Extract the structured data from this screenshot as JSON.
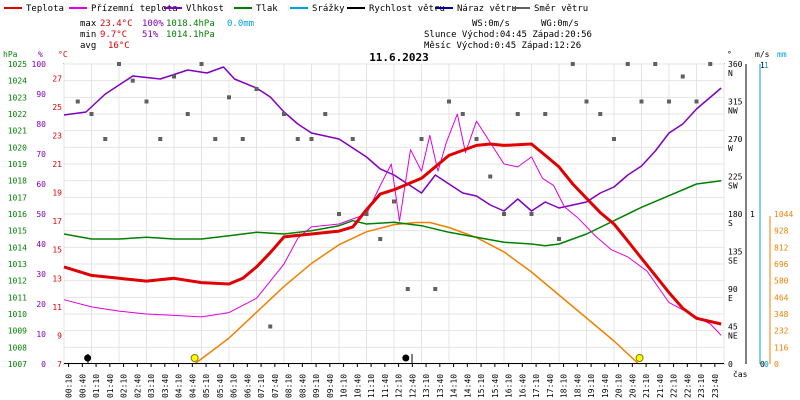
{
  "title": "11.6.2023",
  "legend": [
    {
      "label": "Teplota",
      "color": "#e00000"
    },
    {
      "label": "Přízemní teplota",
      "color": "#e000e0"
    },
    {
      "label": "Vlhkost",
      "color": "#8000c0"
    },
    {
      "label": "Tlak",
      "color": "#008000"
    },
    {
      "label": "Srážky",
      "color": "#00a0e0"
    },
    {
      "label": "Rychlost větru",
      "color": "#000000"
    },
    {
      "label": "Náraz větru",
      "color": "#0000a0"
    },
    {
      "label": "Směr větru",
      "color": "#606060"
    }
  ],
  "stats": {
    "max_label": "max",
    "max_temp": "23.4°C",
    "max_hum": "100%",
    "max_press": "1018.4hPa",
    "max_rain": "0.0mm",
    "min_label": "min",
    "min_temp": "9.7°C",
    "min_hum": "51%",
    "min_press": "1014.1hPa",
    "avg_label": "avg",
    "avg_temp": "16°C",
    "ws": "WS:0m/s",
    "wg": "WG:0m/s",
    "sun": "Slunce Východ:04:45  Západ:20:56",
    "moon": "Měsíc  Východ:0:45  Západ:12:26"
  },
  "axis_titles": {
    "hpa": "hPa",
    "pct": "%",
    "degc": "°C",
    "deg": "°",
    "ms": "m/s",
    "mm": "mm",
    "time": "čas"
  },
  "axes": {
    "pressure_ticks": [
      "1025",
      "1024",
      "1023",
      "1022",
      "1021",
      "1020",
      "1019",
      "1018",
      "1017",
      "1016",
      "1015",
      "1014",
      "1013",
      "1012",
      "1011",
      "1010",
      "1009",
      "1008",
      "1007"
    ],
    "humidity_ticks": [
      "100",
      "90",
      "80",
      "70",
      "60",
      "50",
      "40",
      "30",
      "20",
      "10",
      "0"
    ],
    "temp_ticks": [
      "27",
      "25",
      "23",
      "21",
      "19",
      "17",
      "15",
      "13",
      "11",
      "9",
      "7"
    ],
    "dir_ticks": [
      {
        "deg": "360",
        "dir": "N"
      },
      {
        "deg": "315",
        "dir": "NW"
      },
      {
        "deg": "270",
        "dir": "W"
      },
      {
        "deg": "225",
        "dir": "SW"
      },
      {
        "deg": "180",
        "dir": "S"
      },
      {
        "deg": "135",
        "dir": "SE"
      },
      {
        "deg": "90",
        "dir": "E"
      },
      {
        "deg": "45",
        "dir": "NE"
      },
      {
        "deg": "0",
        "dir": ""
      }
    ],
    "wind_ticks": {
      "top": "1",
      "mid": "1",
      "bottom": "0"
    },
    "rain_ticks": {
      "top": "1",
      "bottom": "0"
    },
    "solar_ticks": [
      "1044",
      "928",
      "812",
      "696",
      "580",
      "464",
      "348",
      "232",
      "116",
      "0"
    ],
    "time_labels": [
      "00:10",
      "00:40",
      "01:10",
      "01:40",
      "02:10",
      "02:40",
      "03:10",
      "03:40",
      "04:10",
      "04:40",
      "05:10",
      "05:40",
      "06:10",
      "06:40",
      "07:10",
      "07:40",
      "08:10",
      "08:40",
      "09:10",
      "09:40",
      "10:10",
      "10:40",
      "11:10",
      "11:40",
      "12:10",
      "12:40",
      "13:10",
      "13:40",
      "14:10",
      "14:40",
      "15:10",
      "15:40",
      "16:10",
      "16:40",
      "17:10",
      "17:40",
      "18:10",
      "18:40",
      "19:10",
      "19:40",
      "20:10",
      "20:40",
      "21:10",
      "21:40",
      "22:10",
      "22:40",
      "23:10",
      "23:40"
    ]
  },
  "chart_data": {
    "type": "line",
    "x_unit": "hour",
    "series": [
      {
        "name": "Teplota",
        "color": "#e00000",
        "values": [
          [
            0,
            13.8
          ],
          [
            1,
            13.2
          ],
          [
            2,
            13.0
          ],
          [
            3,
            12.8
          ],
          [
            4,
            13.0
          ],
          [
            5,
            12.7
          ],
          [
            6,
            12.6
          ],
          [
            6.5,
            13.0
          ],
          [
            7,
            13.8
          ],
          [
            7.5,
            14.8
          ],
          [
            8,
            15.9
          ],
          [
            8.5,
            16.0
          ],
          [
            9,
            16.1
          ],
          [
            10,
            16.3
          ],
          [
            10.5,
            16.6
          ],
          [
            11,
            17.8
          ],
          [
            11.5,
            18.9
          ],
          [
            12,
            19.2
          ],
          [
            12.5,
            19.6
          ],
          [
            13,
            20.0
          ],
          [
            14,
            21.6
          ],
          [
            15,
            22.3
          ],
          [
            15.5,
            22.4
          ],
          [
            16,
            22.3
          ],
          [
            17,
            22.4
          ],
          [
            17.5,
            21.6
          ],
          [
            18,
            20.8
          ],
          [
            18.5,
            19.6
          ],
          [
            19,
            18.6
          ],
          [
            19.5,
            17.6
          ],
          [
            20,
            16.8
          ],
          [
            20.5,
            15.6
          ],
          [
            21,
            14.4
          ],
          [
            21.5,
            13.2
          ],
          [
            22,
            12.0
          ],
          [
            22.5,
            10.9
          ],
          [
            23,
            10.2
          ],
          [
            23.9,
            9.8
          ]
        ]
      },
      {
        "name": "Přízemní teplota",
        "color": "#e000e0",
        "values": [
          [
            0,
            11.5
          ],
          [
            1,
            11.0
          ],
          [
            2,
            10.7
          ],
          [
            3,
            10.5
          ],
          [
            4,
            10.4
          ],
          [
            5,
            10.3
          ],
          [
            6,
            10.6
          ],
          [
            7,
            11.6
          ],
          [
            8,
            14.0
          ],
          [
            8.5,
            15.8
          ],
          [
            9,
            16.6
          ],
          [
            10,
            16.8
          ],
          [
            11,
            17.5
          ],
          [
            11.5,
            19.5
          ],
          [
            11.9,
            21.0
          ],
          [
            12.2,
            17.0
          ],
          [
            12.6,
            22.0
          ],
          [
            13,
            20.5
          ],
          [
            13.3,
            23.0
          ],
          [
            13.6,
            20.5
          ],
          [
            13.9,
            22.5
          ],
          [
            14.3,
            24.5
          ],
          [
            14.6,
            21.8
          ],
          [
            15,
            24.0
          ],
          [
            15.5,
            22.5
          ],
          [
            16,
            21.0
          ],
          [
            16.5,
            20.8
          ],
          [
            17,
            21.5
          ],
          [
            17.4,
            20.0
          ],
          [
            17.8,
            19.5
          ],
          [
            18.2,
            18.0
          ],
          [
            18.7,
            17.2
          ],
          [
            19.3,
            16.0
          ],
          [
            19.9,
            15.0
          ],
          [
            20.5,
            14.5
          ],
          [
            21.2,
            13.5
          ],
          [
            22,
            11.3
          ],
          [
            22.8,
            10.5
          ],
          [
            23.5,
            9.8
          ],
          [
            23.9,
            9.0
          ]
        ]
      },
      {
        "name": "Vlhkost",
        "color": "#8000c0",
        "values": [
          [
            0,
            83
          ],
          [
            0.8,
            84
          ],
          [
            1.5,
            90
          ],
          [
            2.5,
            96
          ],
          [
            3.5,
            95
          ],
          [
            4.5,
            98
          ],
          [
            5.2,
            97
          ],
          [
            5.8,
            99
          ],
          [
            6.2,
            95
          ],
          [
            7,
            92
          ],
          [
            7.5,
            89
          ],
          [
            8,
            84
          ],
          [
            8.5,
            80
          ],
          [
            9,
            77
          ],
          [
            10,
            75
          ],
          [
            10.5,
            72
          ],
          [
            11,
            69
          ],
          [
            11.5,
            65
          ],
          [
            12,
            63
          ],
          [
            12.5,
            60
          ],
          [
            13,
            57
          ],
          [
            13.5,
            63
          ],
          [
            14,
            60
          ],
          [
            14.5,
            57
          ],
          [
            15,
            56
          ],
          [
            15.5,
            53
          ],
          [
            16,
            51
          ],
          [
            16.5,
            55
          ],
          [
            17,
            51
          ],
          [
            17.5,
            54
          ],
          [
            18,
            52
          ],
          [
            18.5,
            53
          ],
          [
            19,
            54
          ],
          [
            19.5,
            57
          ],
          [
            20,
            59
          ],
          [
            20.5,
            63
          ],
          [
            21,
            66
          ],
          [
            21.5,
            71
          ],
          [
            22,
            77
          ],
          [
            22.5,
            80
          ],
          [
            23,
            85
          ],
          [
            23.9,
            92
          ]
        ]
      },
      {
        "name": "Tlak",
        "color": "#008000",
        "values": [
          [
            0,
            1014.8
          ],
          [
            1,
            1014.5
          ],
          [
            2,
            1014.5
          ],
          [
            3,
            1014.6
          ],
          [
            4,
            1014.5
          ],
          [
            5,
            1014.5
          ],
          [
            6,
            1014.7
          ],
          [
            7,
            1014.9
          ],
          [
            8,
            1014.8
          ],
          [
            9,
            1015.0
          ],
          [
            10,
            1015.3
          ],
          [
            10.5,
            1015.6
          ],
          [
            11,
            1015.4
          ],
          [
            12,
            1015.5
          ],
          [
            13,
            1015.3
          ],
          [
            14,
            1014.9
          ],
          [
            15,
            1014.6
          ],
          [
            16,
            1014.3
          ],
          [
            17,
            1014.2
          ],
          [
            17.5,
            1014.1
          ],
          [
            18,
            1014.2
          ],
          [
            19,
            1014.8
          ],
          [
            20,
            1015.6
          ],
          [
            21,
            1016.4
          ],
          [
            22,
            1017.1
          ],
          [
            23,
            1017.8
          ],
          [
            23.9,
            1018.0
          ]
        ]
      },
      {
        "name": "Srážky",
        "color": "#00a0e0",
        "values": [
          [
            0,
            0
          ],
          [
            23.9,
            0
          ]
        ]
      },
      {
        "name": "Rychlost větru",
        "color": "#000000",
        "values": [
          [
            0,
            0
          ],
          [
            23.9,
            0
          ]
        ]
      },
      {
        "name": "Sluneční záření",
        "color": "#f08000",
        "values": [
          [
            4.75,
            0
          ],
          [
            6,
            180
          ],
          [
            7,
            360
          ],
          [
            8,
            540
          ],
          [
            9,
            700
          ],
          [
            10,
            830
          ],
          [
            11,
            920
          ],
          [
            12,
            970
          ],
          [
            12.8,
            985
          ],
          [
            13.3,
            985
          ],
          [
            14,
            950
          ],
          [
            15,
            880
          ],
          [
            16,
            780
          ],
          [
            17,
            640
          ],
          [
            18,
            480
          ],
          [
            19,
            320
          ],
          [
            20,
            160
          ],
          [
            20.9,
            0
          ]
        ]
      },
      {
        "name": "Směr větru",
        "color": "#606060",
        "values": [
          [
            0.5,
            315
          ],
          [
            1,
            300
          ],
          [
            1.5,
            270
          ],
          [
            2,
            360
          ],
          [
            2.5,
            340
          ],
          [
            3,
            315
          ],
          [
            3.5,
            270
          ],
          [
            4,
            345
          ],
          [
            4.5,
            300
          ],
          [
            5,
            360
          ],
          [
            5.5,
            270
          ],
          [
            6,
            320
          ],
          [
            6.5,
            270
          ],
          [
            7,
            330
          ],
          [
            7.5,
            45
          ],
          [
            8,
            300
          ],
          [
            8.5,
            270
          ],
          [
            9,
            270
          ],
          [
            9.5,
            300
          ],
          [
            10,
            180
          ],
          [
            10.5,
            270
          ],
          [
            11,
            180
          ],
          [
            11.5,
            150
          ],
          [
            12,
            195
          ],
          [
            12.5,
            90
          ],
          [
            13,
            270
          ],
          [
            13.5,
            90
          ],
          [
            14,
            315
          ],
          [
            14.5,
            300
          ],
          [
            15,
            270
          ],
          [
            15.5,
            225
          ],
          [
            16,
            180
          ],
          [
            16.5,
            300
          ],
          [
            17,
            180
          ],
          [
            17.5,
            300
          ],
          [
            18,
            150
          ],
          [
            18.5,
            360
          ],
          [
            19,
            315
          ],
          [
            19.5,
            300
          ],
          [
            20,
            270
          ],
          [
            20.5,
            360
          ],
          [
            21,
            315
          ],
          [
            21.5,
            360
          ],
          [
            22,
            315
          ],
          [
            22.5,
            345
          ],
          [
            23,
            315
          ],
          [
            23.5,
            360
          ]
        ]
      }
    ],
    "ranges": {
      "temp": [
        7,
        28
      ],
      "humidity": [
        0,
        100
      ],
      "pressure": [
        1007,
        1025
      ],
      "direction": [
        0,
        360
      ],
      "solar": [
        0,
        1044
      ],
      "time": [
        0,
        24
      ]
    },
    "grid": true
  }
}
